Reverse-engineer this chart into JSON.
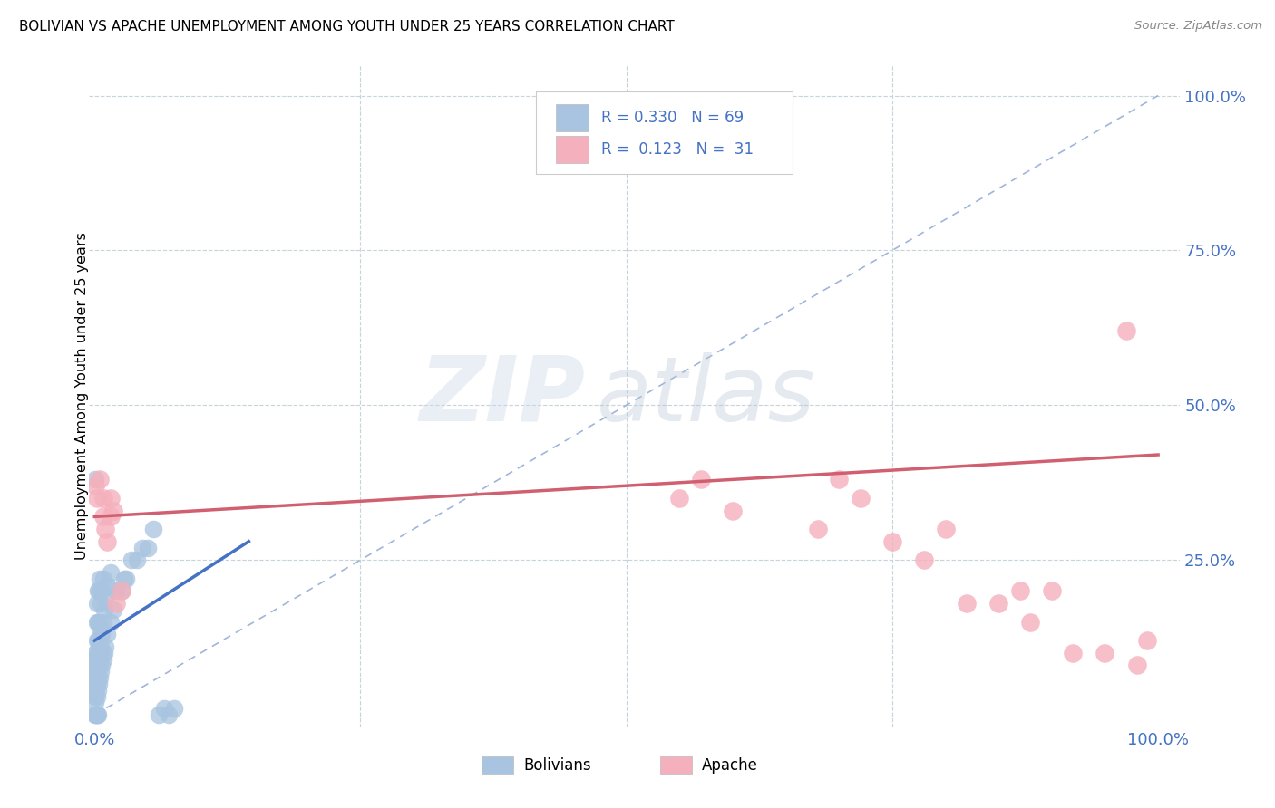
{
  "title": "BOLIVIAN VS APACHE UNEMPLOYMENT AMONG YOUTH UNDER 25 YEARS CORRELATION CHART",
  "source": "Source: ZipAtlas.com",
  "ylabel": "Unemployment Among Youth under 25 years",
  "bolivians_color": "#a8c4e0",
  "apache_color": "#f4b0bc",
  "trend_bolivians_color": "#4472c4",
  "trend_apache_color": "#d06070",
  "reference_line_color": "#90a8d4",
  "background_color": "#ffffff",
  "grid_color": "#c8d4dc",
  "label_bolivians": "Bolivians",
  "label_apache": "Apache",
  "xlim": [
    0.0,
    1.0
  ],
  "ylim": [
    0.0,
    1.0
  ],
  "bolivians_x": [
    0.001,
    0.001,
    0.001,
    0.001,
    0.001,
    0.001,
    0.001,
    0.001,
    0.001,
    0.001,
    0.002,
    0.002,
    0.002,
    0.002,
    0.002,
    0.002,
    0.002,
    0.003,
    0.003,
    0.003,
    0.003,
    0.003,
    0.003,
    0.004,
    0.004,
    0.004,
    0.004,
    0.004,
    0.005,
    0.005,
    0.005,
    0.005,
    0.006,
    0.006,
    0.006,
    0.007,
    0.007,
    0.007,
    0.008,
    0.008,
    0.008,
    0.009,
    0.009,
    0.01,
    0.01,
    0.012,
    0.012,
    0.015,
    0.015,
    0.018,
    0.02,
    0.025,
    0.028,
    0.03,
    0.035,
    0.04,
    0.045,
    0.05,
    0.055,
    0.06,
    0.065,
    0.07,
    0.075,
    0.001,
    0.002,
    0.003,
    0.001,
    0.002
  ],
  "bolivians_y": [
    0.02,
    0.03,
    0.04,
    0.05,
    0.06,
    0.07,
    0.08,
    0.09,
    0.1,
    0.38,
    0.03,
    0.05,
    0.07,
    0.1,
    0.12,
    0.15,
    0.18,
    0.04,
    0.06,
    0.09,
    0.12,
    0.15,
    0.2,
    0.05,
    0.08,
    0.11,
    0.15,
    0.2,
    0.06,
    0.09,
    0.14,
    0.22,
    0.07,
    0.11,
    0.18,
    0.08,
    0.13,
    0.2,
    0.09,
    0.15,
    0.22,
    0.1,
    0.17,
    0.11,
    0.19,
    0.13,
    0.21,
    0.15,
    0.23,
    0.17,
    0.2,
    0.2,
    0.22,
    0.22,
    0.25,
    0.25,
    0.27,
    0.27,
    0.3,
    0.0,
    0.01,
    0.0,
    0.01,
    0.0,
    0.0,
    0.0,
    0.0,
    0.0
  ],
  "apache_x": [
    0.005,
    0.008,
    0.008,
    0.01,
    0.012,
    0.015,
    0.015,
    0.018,
    0.02,
    0.025,
    0.55,
    0.57,
    0.6,
    0.68,
    0.7,
    0.72,
    0.75,
    0.78,
    0.8,
    0.82,
    0.85,
    0.87,
    0.88,
    0.9,
    0.92,
    0.95,
    0.97,
    0.98,
    0.99,
    0.001,
    0.002
  ],
  "apache_y": [
    0.38,
    0.32,
    0.35,
    0.3,
    0.28,
    0.32,
    0.35,
    0.33,
    0.18,
    0.2,
    0.35,
    0.38,
    0.33,
    0.3,
    0.38,
    0.35,
    0.28,
    0.25,
    0.3,
    0.18,
    0.18,
    0.2,
    0.15,
    0.2,
    0.1,
    0.1,
    0.62,
    0.08,
    0.12,
    0.37,
    0.35
  ],
  "apache_trend_x": [
    0.0,
    1.0
  ],
  "apache_trend_y": [
    0.32,
    0.42
  ],
  "bolivian_trend_x": [
    0.0,
    0.145
  ],
  "bolivian_trend_y": [
    0.12,
    0.28
  ]
}
